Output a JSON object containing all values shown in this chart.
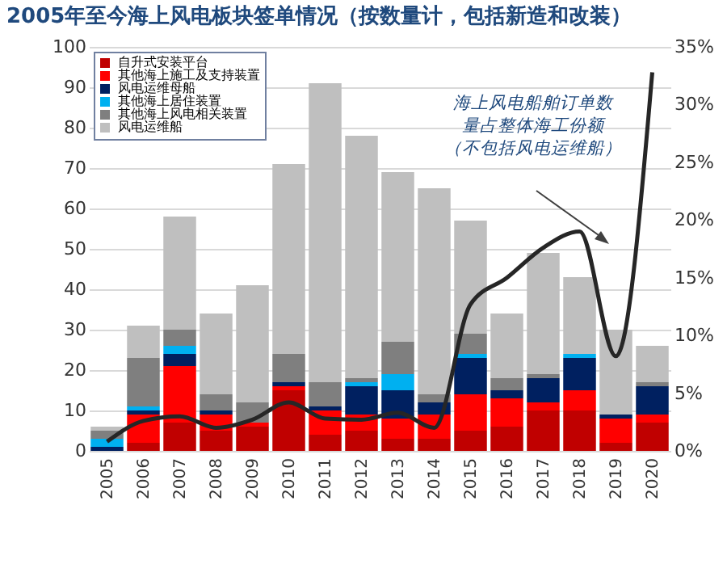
{
  "chart_data": {
    "type": "bar",
    "title": "2005年至今海上风电板块签单情况（按数量计，包括新造和改装）",
    "categories": [
      "2005",
      "2006",
      "2007",
      "2008",
      "2009",
      "2010",
      "2011",
      "2012",
      "2013",
      "2014",
      "2015",
      "2016",
      "2017",
      "2018",
      "2019",
      "2020"
    ],
    "stacked": true,
    "series": [
      {
        "name": "自升式安装平台",
        "color": "#c00000",
        "values": [
          0,
          2,
          7,
          5,
          6,
          15,
          4,
          5,
          3,
          3,
          5,
          6,
          10,
          10,
          2,
          7
        ]
      },
      {
        "name": "其他海上施工及支持装置",
        "color": "#ff0000",
        "values": [
          0,
          7,
          14,
          4,
          1,
          1,
          6,
          4,
          5,
          6,
          9,
          7,
          2,
          5,
          6,
          2
        ]
      },
      {
        "name": "风电运维母船",
        "color": "#002060",
        "values": [
          1,
          1,
          3,
          1,
          0,
          1,
          1,
          7,
          7,
          3,
          9,
          2,
          6,
          8,
          1,
          7
        ]
      },
      {
        "name": "其他海上居住装置",
        "color": "#00b0f0",
        "values": [
          2,
          1,
          2,
          0,
          0,
          0,
          0,
          1,
          4,
          0,
          1,
          0,
          0,
          1,
          0,
          0
        ]
      },
      {
        "name": "其他海上风电相关装置",
        "color": "#7f7f7f",
        "values": [
          2,
          12,
          4,
          4,
          5,
          7,
          6,
          1,
          8,
          2,
          5,
          3,
          1,
          0,
          0,
          1
        ]
      },
      {
        "name": "风电运维船",
        "color": "#bfbfbf",
        "values": [
          1,
          8,
          28,
          20,
          29,
          47,
          74,
          60,
          42,
          51,
          28,
          16,
          30,
          19,
          21,
          9
        ]
      },
      {
        "type": "line",
        "axis": "y2",
        "color": "#262626",
        "values": [
          0.8,
          2.6,
          3.0,
          2.0,
          2.7,
          4.2,
          2.8,
          2.7,
          3.3,
          2.0,
          12.7,
          15.0,
          17.6,
          19.0,
          8.2,
          32.8
        ]
      }
    ],
    "ylim": [
      0,
      100
    ],
    "yticks": [
      0,
      10,
      20,
      30,
      40,
      50,
      60,
      70,
      80,
      90,
      100
    ],
    "y2lim": [
      0,
      35
    ],
    "y2ticks": [
      {
        "value": 0,
        "label": "0%"
      },
      {
        "value": 5,
        "label": "5%"
      },
      {
        "value": 10,
        "label": "10%"
      },
      {
        "value": 15,
        "label": "15%"
      },
      {
        "value": 20,
        "label": "20%"
      },
      {
        "value": 25,
        "label": "25%"
      },
      {
        "value": 30,
        "label": "30%"
      },
      {
        "value": 35,
        "label": "35%"
      }
    ],
    "grid": "y",
    "legend": "top left",
    "annotations": [
      "海上风电船舶订单数量占整体海工份额",
      "（不包括风电运维船）"
    ]
  }
}
